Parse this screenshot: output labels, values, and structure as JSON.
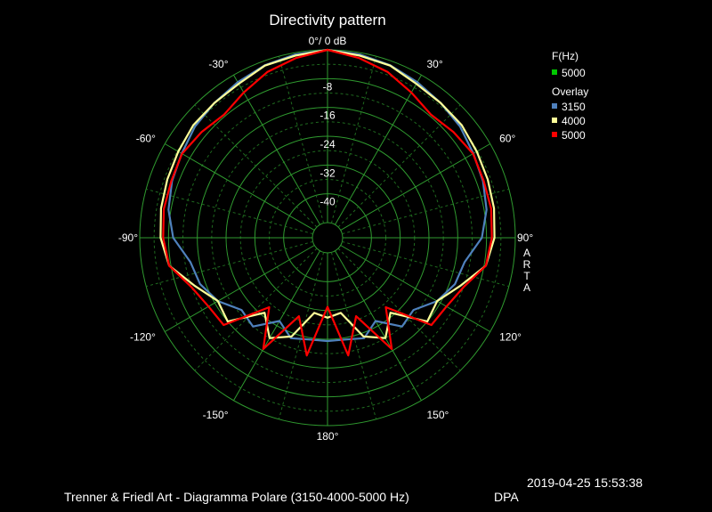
{
  "chart_data": {
    "type": "polar",
    "title": "Directivity pattern",
    "radial_unit": "dB",
    "radial_range": [
      -48,
      0
    ],
    "radial_ticks": [
      "0°/ 0 dB",
      "-8",
      "-16",
      "-24",
      "-32",
      "-40"
    ],
    "angle_ticks": [
      {
        "deg": 0,
        "label": "0°/ 0 dB"
      },
      {
        "deg": -30,
        "label": "-30°"
      },
      {
        "deg": 30,
        "label": "30°"
      },
      {
        "deg": -60,
        "label": "-60°"
      },
      {
        "deg": 60,
        "label": "60°"
      },
      {
        "deg": -90,
        "label": "-90°"
      },
      {
        "deg": 90,
        "label": "90°"
      },
      {
        "deg": -120,
        "label": "-120°"
      },
      {
        "deg": 120,
        "label": "120°"
      },
      {
        "deg": -150,
        "label": "-150°"
      },
      {
        "deg": 150,
        "label": "150°"
      },
      {
        "deg": 180,
        "label": "180°"
      }
    ],
    "side_label": "ARTA",
    "legend": {
      "main_title": "F(Hz)",
      "main_entries": [
        {
          "label": "5000",
          "color": "#00c800"
        }
      ],
      "overlay_title": "Overlay",
      "overlay_entries": [
        {
          "label": "3150",
          "color": "#4f81bd"
        },
        {
          "label": "4000",
          "color": "#ffff99"
        },
        {
          "label": "5000",
          "color": "#ff0000"
        }
      ]
    },
    "angles": [
      0,
      10,
      20,
      30,
      40,
      50,
      60,
      70,
      80,
      90,
      100,
      110,
      120,
      130,
      140,
      150,
      160,
      170,
      180
    ],
    "series": [
      {
        "name": "3150",
        "color": "#4f81bd",
        "values": [
          0,
          -0.5,
          -1.2,
          -2.3,
          -3.3,
          -4.1,
          -5.4,
          -6.2,
          -7.3,
          -9.3,
          -13.5,
          -14.5,
          -17,
          -21,
          -20,
          -25.5,
          -22.5,
          -23.5,
          -23.5
        ]
      },
      {
        "name": "4000",
        "color": "#ffff99",
        "values": [
          0,
          -0.8,
          -1.3,
          -2.8,
          -3.3,
          -3.5,
          -4.3,
          -4.8,
          -5.2,
          -5.8,
          -7.5,
          -13,
          -17,
          -16,
          -25,
          -20,
          -23,
          -31,
          -30
        ]
      },
      {
        "name": "5000",
        "color": "#ff0000",
        "values": [
          0,
          -1.5,
          -3.2,
          -5.6,
          -7.5,
          -6.5,
          -5.5,
          -6,
          -6,
          -6.5,
          -7.5,
          -12,
          -14,
          -14.5,
          -27,
          -16.5,
          -29,
          -19,
          -33
        ]
      }
    ]
  },
  "footer": {
    "datetime": "2019-04-25  15:53:38",
    "caption": "Trenner & Friedl Art - Diagramma Polare (3150-4000-5000 Hz)",
    "tag": "DPA"
  }
}
